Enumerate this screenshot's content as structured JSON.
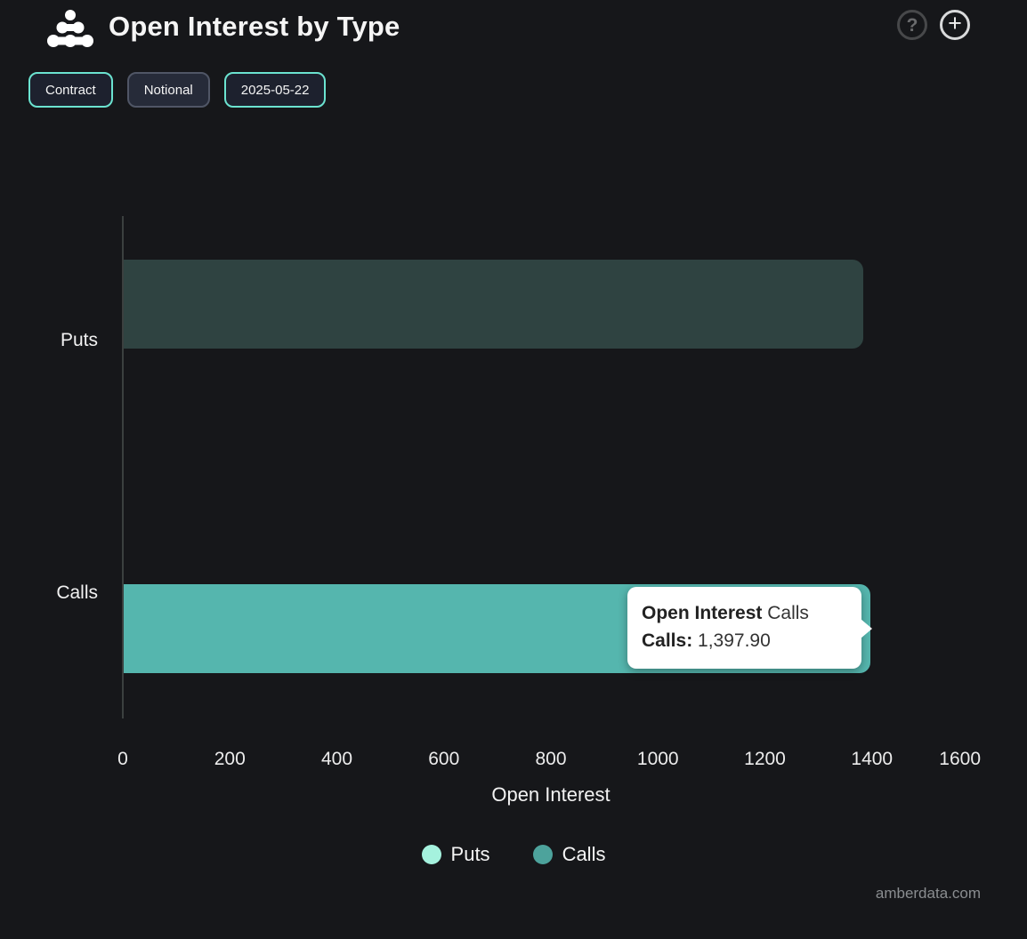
{
  "header": {
    "title": "Open Interest by Type",
    "help_label": "?",
    "add_label": "+"
  },
  "toolbar": {
    "buttons": [
      {
        "label": "Contract",
        "active": true
      },
      {
        "label": "Notional",
        "active": false
      },
      {
        "label": "2025-05-22",
        "active": true
      }
    ]
  },
  "chart_data": {
    "type": "bar",
    "orientation": "horizontal",
    "title": "Open Interest by Type",
    "categories": [
      "Puts",
      "Calls"
    ],
    "series": [
      {
        "name": "Puts",
        "value": 1384,
        "bar_color": "#2f4341",
        "legend_color": "#a5f2de",
        "state": "dimmed"
      },
      {
        "name": "Calls",
        "value": 1397.9,
        "bar_color": "#55b6ae",
        "legend_color": "#4da39c",
        "state": "hovered"
      }
    ],
    "xlabel": "Open Interest",
    "xticks": [
      0,
      200,
      400,
      600,
      800,
      1000,
      1200,
      1400,
      1600
    ],
    "xlim": [
      0,
      1600
    ],
    "grid": false,
    "legend": [
      "Puts",
      "Calls"
    ],
    "legend_position": "bottom"
  },
  "tooltip": {
    "series_label": "Open Interest",
    "series_suffix": "Calls",
    "value_label": "Calls:",
    "value": "1,397.90"
  },
  "colors": {
    "background": "#16171a",
    "accent_teal": "#6be3d0",
    "calls_bar": "#55b6ae",
    "puts_bar_dimmed": "#2f4341",
    "puts_legend": "#a5f2de",
    "calls_legend": "#4da39c",
    "axis_line": "#3b403f"
  },
  "watermark": "amberdata.com"
}
